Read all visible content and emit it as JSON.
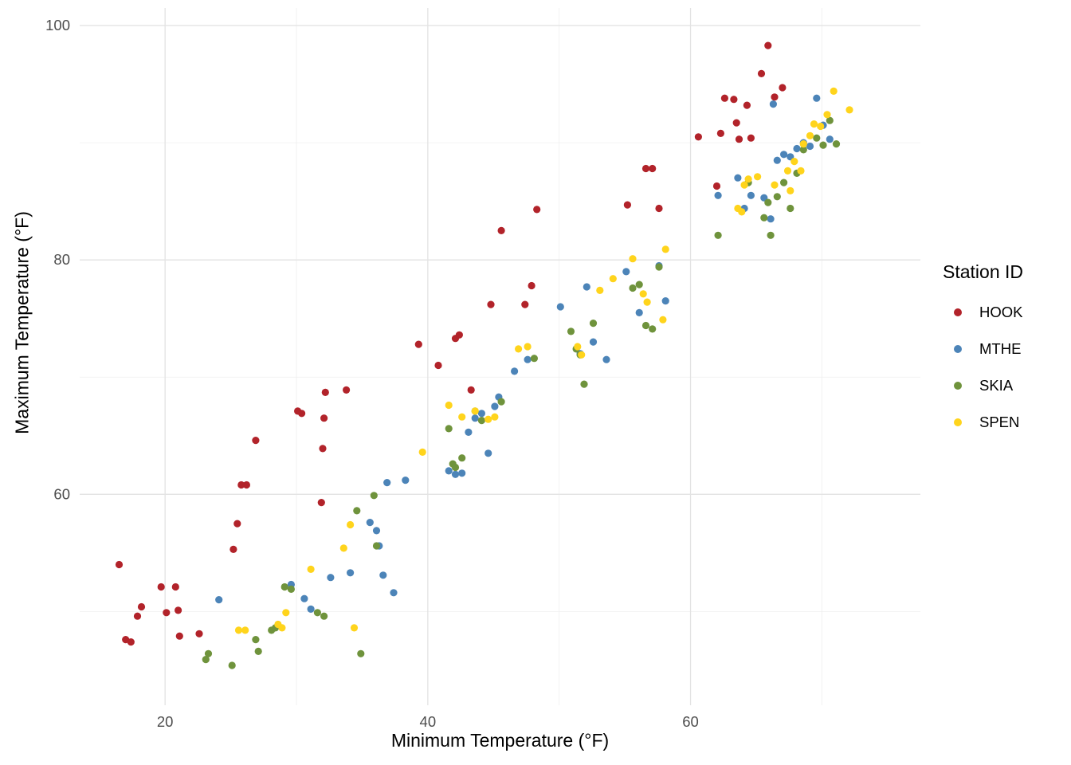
{
  "chart_data": {
    "type": "scatter",
    "title": "",
    "xlabel": "Minimum Temperature (°F)",
    "ylabel": "Maximum Temperature (°F)",
    "legend_title": "Station ID",
    "legend_position": "right",
    "grid": true,
    "xlim": [
      13.5,
      77.5
    ],
    "ylim": [
      42,
      101.5
    ],
    "x_major_ticks": [
      20,
      40,
      60
    ],
    "x_minor_gridlines": [
      30,
      50,
      70
    ],
    "y_major_ticks": [
      60,
      80,
      100
    ],
    "y_minor_gridlines": [
      50,
      70,
      90
    ],
    "colors": {
      "grid_major": "#E3E3E3",
      "grid_minor": "#EFEFEF",
      "tick_label": "#4D4D4D"
    },
    "series": [
      {
        "name": "HOOK",
        "color": "#B2232A",
        "points": [
          [
            16.5,
            54.0
          ],
          [
            17.0,
            47.6
          ],
          [
            17.4,
            47.4
          ],
          [
            17.9,
            49.6
          ],
          [
            18.2,
            50.4
          ],
          [
            19.7,
            52.1
          ],
          [
            20.1,
            49.9
          ],
          [
            20.8,
            52.1
          ],
          [
            21.0,
            50.1
          ],
          [
            21.1,
            47.9
          ],
          [
            22.6,
            48.1
          ],
          [
            25.2,
            55.3
          ],
          [
            25.5,
            57.5
          ],
          [
            25.8,
            60.8
          ],
          [
            26.2,
            60.8
          ],
          [
            26.9,
            64.6
          ],
          [
            30.1,
            67.1
          ],
          [
            30.4,
            66.9
          ],
          [
            31.9,
            59.3
          ],
          [
            32.0,
            63.9
          ],
          [
            32.1,
            66.5
          ],
          [
            32.2,
            68.7
          ],
          [
            33.8,
            68.9
          ],
          [
            39.3,
            72.8
          ],
          [
            40.8,
            71.0
          ],
          [
            42.1,
            73.3
          ],
          [
            42.4,
            73.6
          ],
          [
            43.3,
            68.9
          ],
          [
            44.8,
            76.2
          ],
          [
            45.6,
            82.5
          ],
          [
            47.4,
            76.2
          ],
          [
            47.9,
            77.8
          ],
          [
            48.3,
            84.3
          ],
          [
            55.2,
            84.7
          ],
          [
            56.6,
            87.8
          ],
          [
            57.1,
            87.8
          ],
          [
            57.6,
            84.4
          ],
          [
            60.6,
            90.5
          ],
          [
            62.0,
            86.3
          ],
          [
            62.3,
            90.8
          ],
          [
            62.6,
            93.8
          ],
          [
            63.3,
            93.7
          ],
          [
            63.5,
            91.7
          ],
          [
            63.7,
            90.3
          ],
          [
            64.3,
            93.2
          ],
          [
            64.6,
            90.4
          ],
          [
            65.4,
            95.9
          ],
          [
            65.9,
            98.3
          ],
          [
            66.4,
            93.9
          ],
          [
            67.0,
            94.7
          ]
        ]
      },
      {
        "name": "MTHE",
        "color": "#4C84B8",
        "points": [
          [
            24.1,
            51.0
          ],
          [
            29.6,
            52.3
          ],
          [
            30.6,
            51.1
          ],
          [
            31.1,
            50.2
          ],
          [
            32.6,
            52.9
          ],
          [
            34.1,
            53.3
          ],
          [
            35.6,
            57.6
          ],
          [
            36.1,
            56.9
          ],
          [
            36.3,
            55.6
          ],
          [
            36.6,
            53.1
          ],
          [
            37.4,
            51.6
          ],
          [
            36.9,
            61.0
          ],
          [
            38.3,
            61.2
          ],
          [
            41.6,
            62.0
          ],
          [
            42.1,
            61.7
          ],
          [
            42.6,
            61.8
          ],
          [
            43.1,
            65.3
          ],
          [
            43.6,
            66.5
          ],
          [
            44.1,
            66.9
          ],
          [
            44.6,
            63.5
          ],
          [
            45.1,
            67.5
          ],
          [
            45.4,
            68.3
          ],
          [
            46.6,
            70.5
          ],
          [
            47.6,
            71.5
          ],
          [
            50.1,
            76.0
          ],
          [
            51.6,
            72.0
          ],
          [
            52.1,
            77.7
          ],
          [
            52.6,
            73.0
          ],
          [
            53.6,
            71.5
          ],
          [
            55.1,
            79.0
          ],
          [
            56.1,
            75.5
          ],
          [
            57.6,
            79.5
          ],
          [
            58.1,
            76.5
          ],
          [
            62.1,
            85.5
          ],
          [
            63.6,
            87.0
          ],
          [
            64.1,
            84.4
          ],
          [
            64.6,
            85.5
          ],
          [
            65.6,
            85.3
          ],
          [
            66.1,
            83.5
          ],
          [
            66.3,
            93.3
          ],
          [
            66.6,
            88.5
          ],
          [
            67.1,
            89.0
          ],
          [
            67.6,
            88.8
          ],
          [
            68.1,
            89.5
          ],
          [
            68.6,
            90.0
          ],
          [
            69.1,
            89.7
          ],
          [
            69.6,
            93.8
          ],
          [
            70.1,
            91.5
          ],
          [
            70.6,
            90.3
          ]
        ]
      },
      {
        "name": "SKIA",
        "color": "#6F933C",
        "points": [
          [
            23.1,
            45.9
          ],
          [
            23.3,
            46.4
          ],
          [
            25.1,
            45.4
          ],
          [
            26.9,
            47.6
          ],
          [
            27.1,
            46.6
          ],
          [
            28.1,
            48.4
          ],
          [
            28.4,
            48.6
          ],
          [
            29.1,
            52.1
          ],
          [
            29.6,
            51.9
          ],
          [
            31.6,
            49.9
          ],
          [
            32.1,
            49.6
          ],
          [
            34.6,
            58.6
          ],
          [
            34.9,
            46.4
          ],
          [
            35.9,
            59.9
          ],
          [
            36.1,
            55.6
          ],
          [
            41.6,
            65.6
          ],
          [
            41.9,
            62.6
          ],
          [
            42.1,
            62.3
          ],
          [
            42.6,
            63.1
          ],
          [
            43.6,
            67.1
          ],
          [
            44.1,
            66.3
          ],
          [
            45.6,
            67.9
          ],
          [
            48.1,
            71.6
          ],
          [
            50.9,
            73.9
          ],
          [
            51.3,
            72.4
          ],
          [
            51.6,
            71.9
          ],
          [
            51.9,
            69.4
          ],
          [
            52.6,
            74.6
          ],
          [
            55.6,
            77.6
          ],
          [
            56.1,
            77.9
          ],
          [
            56.6,
            74.4
          ],
          [
            57.1,
            74.1
          ],
          [
            57.6,
            79.4
          ],
          [
            62.1,
            82.1
          ],
          [
            64.4,
            86.6
          ],
          [
            65.6,
            83.6
          ],
          [
            65.9,
            84.9
          ],
          [
            66.1,
            82.1
          ],
          [
            66.6,
            85.4
          ],
          [
            67.1,
            86.6
          ],
          [
            67.6,
            84.4
          ],
          [
            68.1,
            87.4
          ],
          [
            68.6,
            89.4
          ],
          [
            69.6,
            90.4
          ],
          [
            70.1,
            89.8
          ],
          [
            70.6,
            91.9
          ],
          [
            71.1,
            89.9
          ]
        ]
      },
      {
        "name": "SPEN",
        "color": "#FFD41C",
        "points": [
          [
            25.6,
            48.4
          ],
          [
            26.1,
            48.4
          ],
          [
            28.6,
            48.9
          ],
          [
            28.9,
            48.6
          ],
          [
            29.2,
            49.9
          ],
          [
            31.1,
            53.6
          ],
          [
            33.6,
            55.4
          ],
          [
            34.1,
            57.4
          ],
          [
            34.4,
            48.6
          ],
          [
            39.6,
            63.6
          ],
          [
            41.6,
            67.6
          ],
          [
            42.6,
            66.6
          ],
          [
            43.6,
            67.1
          ],
          [
            44.6,
            66.4
          ],
          [
            45.1,
            66.6
          ],
          [
            46.9,
            72.4
          ],
          [
            47.6,
            72.6
          ],
          [
            51.4,
            72.6
          ],
          [
            51.7,
            71.9
          ],
          [
            53.1,
            77.4
          ],
          [
            54.1,
            78.4
          ],
          [
            55.6,
            80.1
          ],
          [
            56.4,
            77.1
          ],
          [
            56.7,
            76.4
          ],
          [
            57.9,
            74.9
          ],
          [
            58.1,
            80.9
          ],
          [
            63.6,
            84.4
          ],
          [
            63.9,
            84.1
          ],
          [
            64.1,
            86.4
          ],
          [
            64.4,
            86.9
          ],
          [
            65.1,
            87.1
          ],
          [
            66.4,
            86.4
          ],
          [
            67.4,
            87.6
          ],
          [
            67.6,
            85.9
          ],
          [
            67.9,
            88.4
          ],
          [
            68.4,
            87.6
          ],
          [
            68.6,
            89.9
          ],
          [
            69.1,
            90.6
          ],
          [
            69.4,
            91.6
          ],
          [
            69.9,
            91.4
          ],
          [
            70.4,
            92.4
          ],
          [
            70.9,
            94.4
          ],
          [
            72.1,
            92.8
          ]
        ]
      }
    ]
  }
}
